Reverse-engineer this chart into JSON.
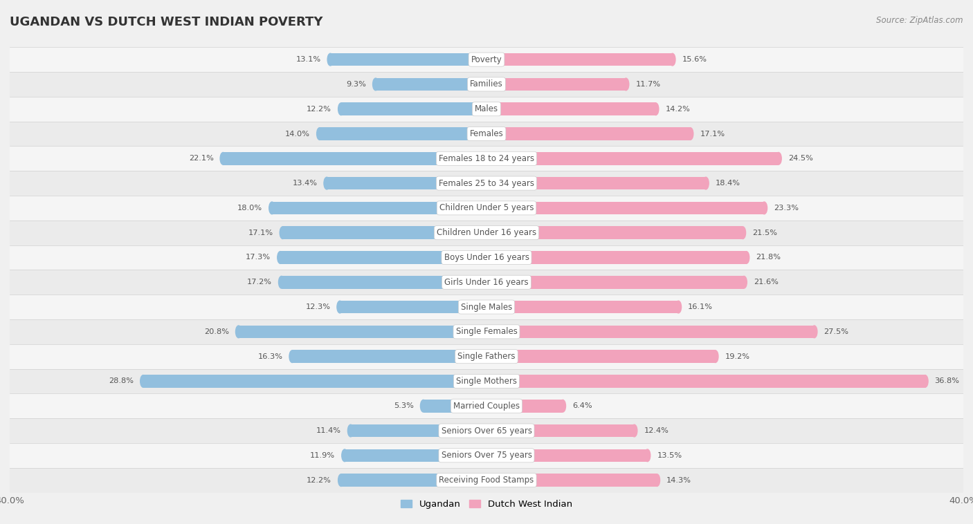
{
  "title": "UGANDAN VS DUTCH WEST INDIAN POVERTY",
  "source": "Source: ZipAtlas.com",
  "categories": [
    "Poverty",
    "Families",
    "Males",
    "Females",
    "Females 18 to 24 years",
    "Females 25 to 34 years",
    "Children Under 5 years",
    "Children Under 16 years",
    "Boys Under 16 years",
    "Girls Under 16 years",
    "Single Males",
    "Single Females",
    "Single Fathers",
    "Single Mothers",
    "Married Couples",
    "Seniors Over 65 years",
    "Seniors Over 75 years",
    "Receiving Food Stamps"
  ],
  "ugandan": [
    13.1,
    9.3,
    12.2,
    14.0,
    22.1,
    13.4,
    18.0,
    17.1,
    17.3,
    17.2,
    12.3,
    20.8,
    16.3,
    28.8,
    5.3,
    11.4,
    11.9,
    12.2
  ],
  "dutch_west_indian": [
    15.6,
    11.7,
    14.2,
    17.1,
    24.5,
    18.4,
    23.3,
    21.5,
    21.8,
    21.6,
    16.1,
    27.5,
    19.2,
    36.8,
    6.4,
    12.4,
    13.5,
    14.3
  ],
  "ugandan_color": "#92bfde",
  "dutch_west_indian_color": "#f2a3bc",
  "row_color_odd": "#f5f5f5",
  "row_color_even": "#ebebeb",
  "background_color": "#f0f0f0",
  "text_color_dark": "#555555",
  "label_box_color": "#ffffff",
  "xlim": 40.0,
  "label_ugandan": "Ugandan",
  "label_dutch": "Dutch West Indian",
  "bar_height": 0.52,
  "label_fontsize": 8.5,
  "value_fontsize": 8.2,
  "title_fontsize": 13,
  "source_fontsize": 8.5
}
